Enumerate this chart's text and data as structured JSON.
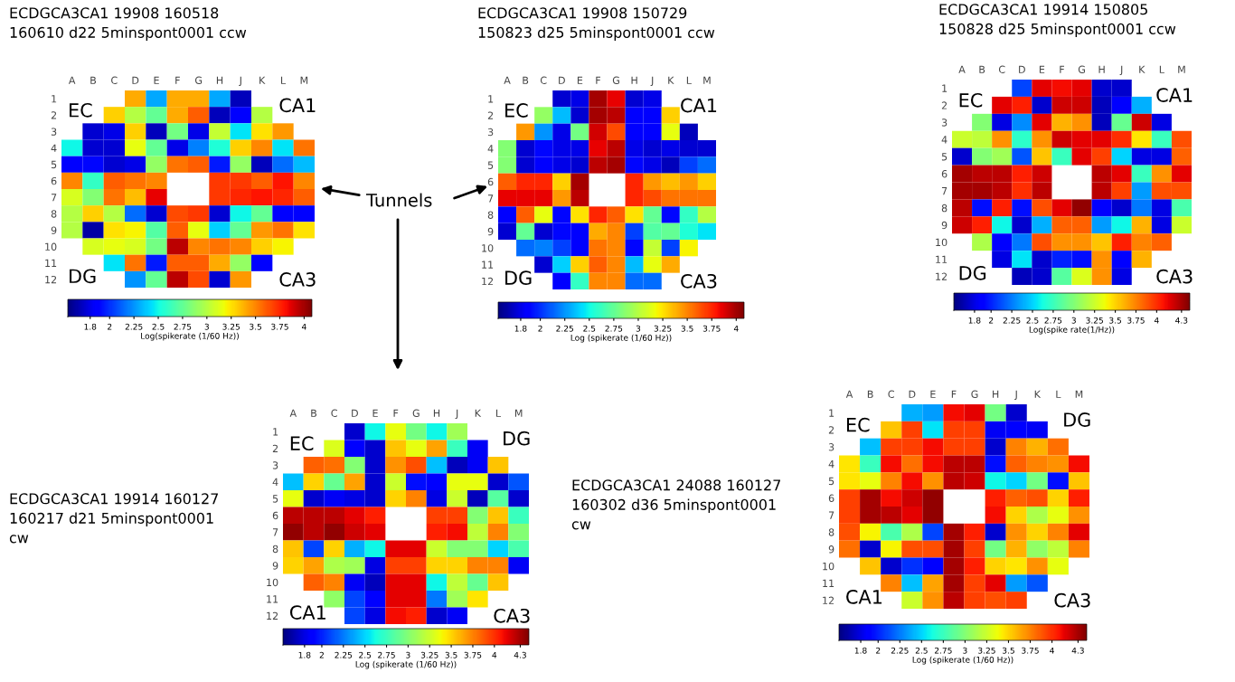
{
  "chart_data": [
    {
      "type": "heatmap",
      "title": "ECDGCA3CA1 19908 160518\n160610 d22 5minspont0001 ccw",
      "clabel": "Log(spikerate (1/60 Hz))",
      "categories": [
        "A",
        "B",
        "C",
        "D",
        "E",
        "F",
        "G",
        "H",
        "J",
        "K",
        "L",
        "M"
      ],
      "y_categories": [
        "1",
        "2",
        "3",
        "4",
        "5",
        "6",
        "7",
        "8",
        "9",
        "10",
        "11",
        "12"
      ],
      "cells": [
        [
          null,
          null,
          null,
          3.4,
          2.3,
          3.4,
          3.4,
          2.3,
          1.7,
          null,
          null,
          null
        ],
        [
          null,
          null,
          3.3,
          3.0,
          2.75,
          3.4,
          3.6,
          1.7,
          1.85,
          3.0,
          null,
          null
        ],
        [
          null,
          1.75,
          1.8,
          3.3,
          1.7,
          2.8,
          1.8,
          3.05,
          2.45,
          3.25,
          3.45,
          null
        ],
        [
          2.5,
          1.75,
          1.75,
          3.15,
          2.75,
          1.8,
          2.2,
          2.55,
          3.3,
          3.5,
          2.45,
          3.55
        ],
        [
          1.85,
          1.9,
          1.75,
          1.8,
          2.9,
          3.55,
          3.6,
          1.95,
          2.9,
          1.7,
          2.15,
          2.35
        ],
        [
          3.5,
          2.6,
          3.6,
          3.55,
          3.5,
          null,
          null,
          3.7,
          3.7,
          3.6,
          3.8,
          3.5
        ],
        [
          3.1,
          2.85,
          3.55,
          3.35,
          3.85,
          null,
          null,
          3.7,
          3.75,
          3.8,
          3.75,
          3.6
        ],
        [
          3.0,
          3.3,
          3.0,
          2.15,
          1.75,
          3.65,
          3.7,
          1.75,
          2.5,
          2.75,
          1.85,
          1.85
        ],
        [
          3.0,
          1.65,
          3.25,
          3.2,
          2.7,
          3.6,
          3.15,
          2.4,
          2.75,
          3.45,
          3.55,
          3.25
        ],
        [
          null,
          3.1,
          3.15,
          3.1,
          2.8,
          3.95,
          3.5,
          3.55,
          3.5,
          3.3,
          3.2,
          null
        ],
        [
          null,
          null,
          2.45,
          3.55,
          1.95,
          3.6,
          3.6,
          3.4,
          2.9,
          1.85,
          null,
          null
        ],
        [
          null,
          null,
          null,
          2.25,
          2.75,
          3.95,
          3.65,
          1.75,
          3.45,
          null,
          null,
          null
        ]
      ],
      "clim": [
        1.57,
        4.08
      ],
      "cticks": [
        1.8,
        2,
        2.25,
        2.5,
        2.75,
        3,
        3.25,
        3.5,
        3.75,
        4
      ],
      "annotations": [
        "EC",
        "CA1",
        "DG",
        "CA3",
        "Tunnels"
      ]
    },
    {
      "type": "heatmap",
      "title": "ECDGCA3CA1 19908 150729\n150823 d25 5minspont0001 ccw",
      "clabel": "Log (spikerate (1/60 Hz))",
      "categories": [
        "A",
        "B",
        "C",
        "D",
        "E",
        "F",
        "G",
        "H",
        "J",
        "K",
        "L",
        "M"
      ],
      "y_categories": [
        "1",
        "2",
        "3",
        "4",
        "5",
        "6",
        "7",
        "8",
        "9",
        "10",
        "11",
        "12"
      ],
      "cells": [
        [
          null,
          null,
          null,
          1.75,
          1.8,
          4.0,
          3.85,
          1.75,
          1.8,
          null,
          null,
          null
        ],
        [
          null,
          null,
          2.9,
          2.35,
          1.75,
          4.0,
          3.95,
          1.85,
          1.85,
          3.3,
          null,
          null
        ],
        [
          null,
          3.45,
          2.25,
          1.8,
          2.8,
          3.9,
          3.65,
          1.85,
          1.85,
          3.15,
          1.7,
          null
        ],
        [
          2.85,
          1.75,
          1.9,
          1.8,
          1.8,
          3.85,
          3.95,
          1.8,
          1.75,
          1.8,
          1.75,
          1.75
        ],
        [
          2.85,
          1.75,
          1.85,
          1.8,
          1.75,
          3.95,
          4.0,
          1.9,
          1.8,
          1.7,
          2.05,
          2.15
        ],
        [
          3.6,
          3.75,
          3.75,
          3.3,
          4.0,
          null,
          null,
          3.75,
          3.45,
          3.35,
          3.45,
          3.3
        ],
        [
          3.85,
          3.85,
          3.85,
          3.45,
          3.95,
          null,
          null,
          3.75,
          3.65,
          3.55,
          3.55,
          3.55
        ],
        [
          1.85,
          3.6,
          3.15,
          1.9,
          3.25,
          3.75,
          3.6,
          3.25,
          2.75,
          1.9,
          2.6,
          3.0
        ],
        [
          1.75,
          2.75,
          1.75,
          1.9,
          1.85,
          3.4,
          3.5,
          2.05,
          2.7,
          2.75,
          2.55,
          2.45
        ],
        [
          null,
          2.15,
          2.2,
          2.05,
          1.85,
          3.55,
          3.5,
          1.9,
          3.05,
          2.05,
          3.2,
          null
        ],
        [
          null,
          null,
          1.75,
          2.4,
          3.3,
          3.6,
          3.5,
          2.35,
          3.15,
          3.4,
          null,
          null
        ],
        [
          null,
          null,
          null,
          1.85,
          2.6,
          3.5,
          3.5,
          2.15,
          2.15,
          null,
          null,
          null
        ]
      ],
      "clim": [
        1.57,
        4.08
      ],
      "cticks": [
        1.8,
        2,
        2.25,
        2.5,
        2.75,
        3,
        3.25,
        3.5,
        3.75,
        4
      ],
      "annotations": [
        "EC",
        "CA1",
        "DG",
        "CA3"
      ]
    },
    {
      "type": "heatmap",
      "title": "ECDGCA3CA1 19914 150805\n150828 d25 5minspont0001 ccw",
      "clabel": "Log(spike rate(1/Hz))",
      "categories": [
        "A",
        "B",
        "C",
        "D",
        "E",
        "F",
        "G",
        "H",
        "J",
        "K",
        "L",
        "M"
      ],
      "y_categories": [
        "1",
        "2",
        "3",
        "4",
        "5",
        "6",
        "7",
        "8",
        "9",
        "10",
        "11",
        "12"
      ],
      "cells": [
        [
          null,
          null,
          null,
          2.1,
          4.15,
          4.1,
          4.15,
          1.75,
          1.75,
          null,
          null,
          null
        ],
        [
          null,
          null,
          4.15,
          4.05,
          1.75,
          4.2,
          4.2,
          1.7,
          1.9,
          2.4,
          null,
          null
        ],
        [
          null,
          3.0,
          1.8,
          2.3,
          4.15,
          3.6,
          3.7,
          1.7,
          2.9,
          4.2,
          1.8,
          null
        ],
        [
          3.25,
          3.2,
          3.7,
          2.7,
          3.7,
          4.2,
          4.15,
          4.15,
          4.0,
          3.45,
          2.75,
          3.9
        ],
        [
          1.75,
          3.0,
          3.1,
          2.15,
          3.55,
          2.75,
          4.15,
          3.95,
          2.5,
          1.8,
          1.8,
          3.85
        ],
        [
          4.3,
          4.25,
          4.25,
          4.05,
          4.2,
          null,
          null,
          4.25,
          4.15,
          2.75,
          3.7,
          4.15
        ],
        [
          4.3,
          4.3,
          4.25,
          4.0,
          4.25,
          null,
          null,
          4.25,
          3.95,
          2.35,
          3.9,
          3.9
        ],
        [
          4.25,
          1.95,
          4.05,
          1.95,
          3.9,
          4.15,
          4.35,
          1.9,
          1.75,
          2.25,
          1.8,
          2.8
        ],
        [
          4.2,
          4.05,
          2.6,
          1.75,
          2.4,
          3.85,
          3.85,
          2.35,
          2.6,
          3.6,
          1.8,
          3.25
        ],
        [
          null,
          3.15,
          1.9,
          2.25,
          3.9,
          3.7,
          3.7,
          3.55,
          4.05,
          3.75,
          3.85,
          null
        ],
        [
          null,
          null,
          1.8,
          2.55,
          1.75,
          2.0,
          1.95,
          3.7,
          1.9,
          3.6,
          null,
          null
        ],
        [
          null,
          null,
          null,
          1.7,
          1.75,
          2.85,
          3.3,
          3.7,
          1.8,
          null,
          null,
          null
        ]
      ],
      "clim": [
        1.55,
        4.4
      ],
      "cticks": [
        1.8,
        2,
        2.25,
        2.5,
        2.75,
        3,
        3.25,
        3.5,
        3.75,
        4,
        4.3
      ],
      "annotations": [
        "EC",
        "CA1",
        "DG",
        "CA3"
      ]
    },
    {
      "type": "heatmap",
      "title": "ECDGCA3CA1 19914 160127\n160217 d21 5minspont0001\ncw",
      "clabel": "Log (spikerate (1/60 Hz))",
      "categories": [
        "A",
        "B",
        "C",
        "D",
        "E",
        "F",
        "G",
        "H",
        "J",
        "K",
        "L",
        "M"
      ],
      "y_categories": [
        "1",
        "2",
        "3",
        "4",
        "5",
        "6",
        "7",
        "8",
        "9",
        "10",
        "11",
        "12"
      ],
      "cells": [
        [
          null,
          null,
          null,
          1.75,
          2.6,
          3.35,
          2.95,
          2.6,
          3.1,
          null,
          null,
          null
        ],
        [
          null,
          null,
          3.3,
          1.9,
          1.75,
          3.55,
          3.35,
          3.65,
          2.75,
          1.85,
          null,
          null
        ],
        [
          null,
          3.85,
          3.8,
          3.0,
          1.75,
          3.7,
          3.9,
          2.45,
          1.7,
          1.85,
          3.55,
          null
        ],
        [
          2.45,
          3.5,
          2.9,
          3.65,
          1.75,
          3.25,
          1.95,
          1.9,
          3.35,
          3.35,
          1.75,
          2.15
        ],
        [
          3.35,
          1.75,
          1.85,
          1.8,
          1.75,
          3.5,
          3.75,
          1.8,
          3.25,
          1.7,
          2.85,
          1.75
        ],
        [
          4.25,
          4.25,
          4.25,
          4.15,
          4.05,
          null,
          null,
          3.95,
          3.95,
          3.0,
          3.55,
          2.75
        ],
        [
          4.35,
          4.25,
          4.35,
          4.2,
          4.15,
          null,
          null,
          4.05,
          4.1,
          3.2,
          3.75,
          3.0
        ],
        [
          3.55,
          2.1,
          3.5,
          2.4,
          2.6,
          4.15,
          4.15,
          3.25,
          3.0,
          3.0,
          2.5,
          2.8
        ],
        [
          3.5,
          3.65,
          3.15,
          3.1,
          1.8,
          3.95,
          3.95,
          3.5,
          3.5,
          3.75,
          3.75,
          1.85
        ],
        [
          null,
          3.85,
          3.75,
          1.85,
          1.7,
          4.15,
          4.15,
          2.6,
          3.2,
          2.9,
          3.55,
          null
        ],
        [
          null,
          null,
          3.05,
          2.1,
          1.9,
          4.15,
          4.15,
          2.25,
          3.1,
          3.45,
          null,
          null
        ],
        [
          null,
          null,
          null,
          2.1,
          1.8,
          4.1,
          4.05,
          1.75,
          1.85,
          null,
          null,
          null
        ]
      ],
      "clim": [
        1.55,
        4.4
      ],
      "cticks": [
        1.8,
        2,
        2.25,
        2.5,
        2.75,
        3,
        3.25,
        3.5,
        3.75,
        4,
        4.3
      ],
      "annotations": [
        "EC",
        "DG",
        "CA1",
        "CA3"
      ]
    },
    {
      "type": "heatmap",
      "title": "ECDGCA3CA1 24088 160127\n160302 d36 5minspont0001\ncw",
      "clabel": "Log (spikerate (1/60 Hz))",
      "categories": [
        "A",
        "B",
        "C",
        "D",
        "E",
        "F",
        "G",
        "H",
        "J",
        "K",
        "L",
        "M"
      ],
      "y_categories": [
        "1",
        "2",
        "3",
        "4",
        "5",
        "6",
        "7",
        "8",
        "9",
        "10",
        "11",
        "12"
      ],
      "cells": [
        [
          null,
          null,
          null,
          2.4,
          2.35,
          4.1,
          4.15,
          2.95,
          1.75,
          null,
          null,
          null
        ],
        [
          null,
          null,
          3.55,
          3.95,
          2.55,
          3.95,
          3.95,
          1.85,
          1.9,
          1.85,
          null,
          null
        ],
        [
          null,
          2.45,
          3.95,
          3.95,
          4.1,
          3.95,
          3.95,
          1.75,
          3.75,
          3.6,
          3.8,
          null
        ],
        [
          3.45,
          2.75,
          4.1,
          3.8,
          4.1,
          4.25,
          4.25,
          1.95,
          3.85,
          3.75,
          3.7,
          4.1
        ],
        [
          3.45,
          3.35,
          3.75,
          4.1,
          3.7,
          4.25,
          4.2,
          2.6,
          2.5,
          2.95,
          1.95,
          3.55
        ],
        [
          3.95,
          4.3,
          4.1,
          4.2,
          4.35,
          null,
          null,
          4.05,
          3.85,
          3.9,
          3.5,
          4.05
        ],
        [
          3.95,
          4.3,
          4.25,
          4.15,
          4.35,
          null,
          null,
          4.1,
          3.5,
          3.15,
          3.35,
          3.7
        ],
        [
          3.9,
          3.4,
          2.8,
          3.15,
          2.1,
          4.3,
          4.05,
          1.75,
          3.7,
          3.5,
          3.75,
          4.15
        ],
        [
          3.8,
          1.75,
          3.4,
          3.9,
          3.9,
          4.3,
          3.95,
          2.95,
          3.6,
          3.05,
          3.2,
          3.75
        ],
        [
          null,
          3.55,
          1.75,
          2.05,
          1.9,
          4.3,
          4.05,
          3.5,
          3.45,
          3.7,
          3.35,
          null
        ],
        [
          null,
          null,
          3.75,
          2.45,
          3.65,
          4.3,
          3.95,
          4.15,
          2.35,
          2.15,
          null,
          null
        ],
        [
          null,
          null,
          null,
          3.25,
          3.7,
          4.25,
          3.95,
          3.9,
          3.95,
          null,
          null,
          null
        ]
      ],
      "clim": [
        1.55,
        4.4
      ],
      "cticks": [
        1.8,
        2,
        2.25,
        2.5,
        2.75,
        3,
        3.25,
        3.5,
        3.75,
        4,
        4.3
      ],
      "annotations": [
        "EC",
        "DG",
        "CA1",
        "CA3"
      ]
    }
  ]
}
